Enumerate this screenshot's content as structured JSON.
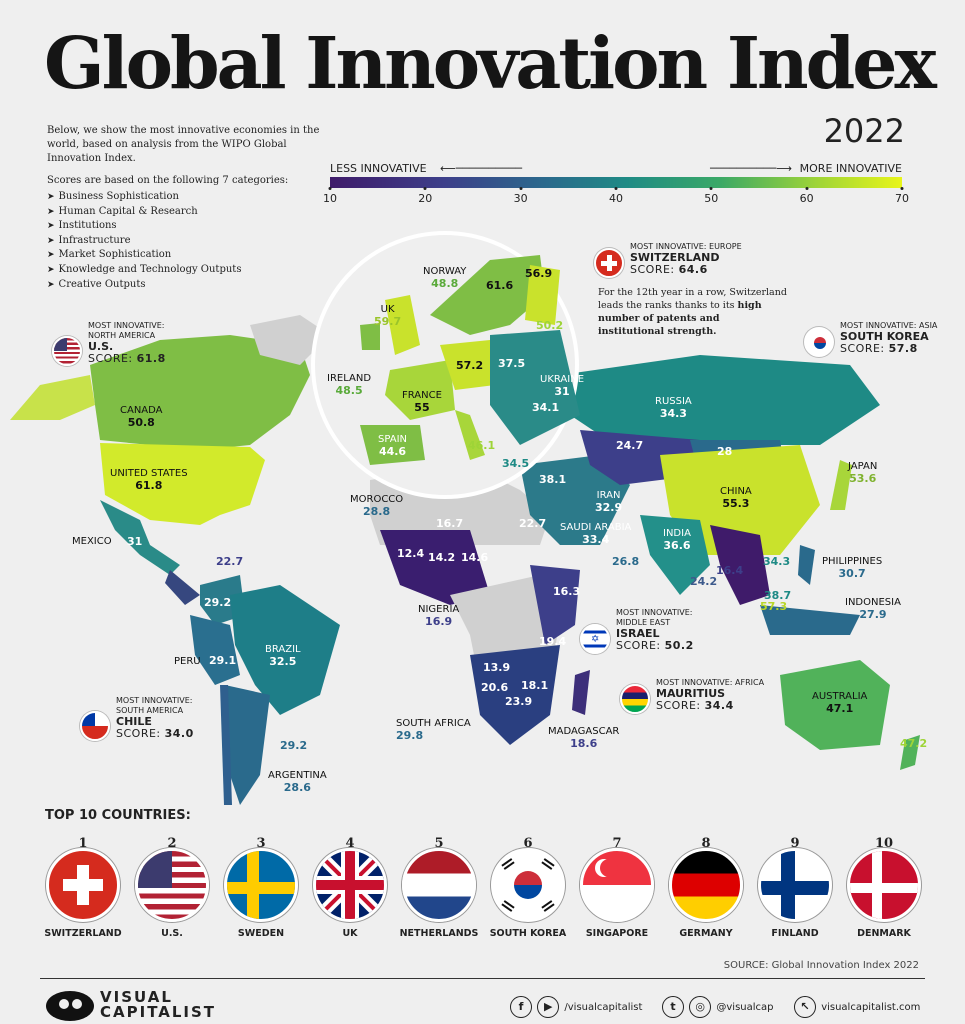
{
  "header": {
    "title": "Global Innovation Index",
    "year": "2022"
  },
  "intro": {
    "text": "Below, we show the most innovative economies in the world, based on analysis from the WIPO Global Innovation Index.",
    "categories_intro": "Scores are based on the following 7 categories:",
    "categories": [
      "Business Sophistication",
      "Human Capital & Research",
      "Institutions",
      "Infrastructure",
      "Market Sophistication",
      "Knowledge and Technology Outputs",
      "Creative Outputs"
    ]
  },
  "legend": {
    "left_label": "LESS INNOVATIVE",
    "right_label": "MORE INNOVATIVE",
    "ticks": [
      "10",
      "20",
      "30",
      "40",
      "50",
      "60",
      "70"
    ],
    "range": [
      10,
      70
    ],
    "colors": [
      "#3f1b6a",
      "#3d3f8a",
      "#2a6a8c",
      "#1f8b85",
      "#3aa867",
      "#9ed437",
      "#e8f51a"
    ]
  },
  "regions": [
    {
      "name": "CANADA",
      "score": "50.8"
    },
    {
      "name": "UNITED STATES",
      "score": "61.8"
    },
    {
      "name": "MEXICO",
      "score": "31"
    },
    {
      "name": "",
      "score": "22.7"
    },
    {
      "name": "",
      "score": "29.2"
    },
    {
      "name": "BRAZIL",
      "score": "32.5"
    },
    {
      "name": "PERU",
      "score": "29.1"
    },
    {
      "name": "",
      "score": "29.2"
    },
    {
      "name": "ARGENTINA",
      "score": "28.6"
    },
    {
      "name": "NORWAY",
      "score": "48.8"
    },
    {
      "name": "UK",
      "score": "59.7"
    },
    {
      "name": "IRELAND",
      "score": "48.5"
    },
    {
      "name": "FRANCE",
      "score": "55"
    },
    {
      "name": "SPAIN",
      "score": "44.6"
    },
    {
      "name": "",
      "score": "61.6"
    },
    {
      "name": "",
      "score": "56.9"
    },
    {
      "name": "",
      "score": "50.2"
    },
    {
      "name": "",
      "score": "57.2"
    },
    {
      "name": "",
      "score": "37.5"
    },
    {
      "name": "UKRAINE",
      "score": "31"
    },
    {
      "name": "",
      "score": "34.1"
    },
    {
      "name": "",
      "score": "46.1"
    },
    {
      "name": "",
      "score": "34.5"
    },
    {
      "name": "RUSSIA",
      "score": "34.3"
    },
    {
      "name": "",
      "score": "24.7"
    },
    {
      "name": "",
      "score": "28"
    },
    {
      "name": "CHINA",
      "score": "55.3"
    },
    {
      "name": "JAPAN",
      "score": "53.6"
    },
    {
      "name": "",
      "score": "38.1"
    },
    {
      "name": "IRAN",
      "score": "32.9"
    },
    {
      "name": "SAUDI ARABIA",
      "score": "33.4"
    },
    {
      "name": "",
      "score": "26.8"
    },
    {
      "name": "INDIA",
      "score": "36.6"
    },
    {
      "name": "",
      "score": "24.2"
    },
    {
      "name": "",
      "score": "16.4"
    },
    {
      "name": "",
      "score": "34.3"
    },
    {
      "name": "PHILIPPINES",
      "score": "30.7"
    },
    {
      "name": "",
      "score": "38.7"
    },
    {
      "name": "",
      "score": "57.3"
    },
    {
      "name": "INDONESIA",
      "score": "27.9"
    },
    {
      "name": "AUSTRALIA",
      "score": "47.1"
    },
    {
      "name": "",
      "score": "47.2"
    },
    {
      "name": "MOROCCO",
      "score": "28.8"
    },
    {
      "name": "",
      "score": "16.7"
    },
    {
      "name": "",
      "score": "22.7"
    },
    {
      "name": "",
      "score": "12.4"
    },
    {
      "name": "",
      "score": "14.2"
    },
    {
      "name": "",
      "score": "14.6"
    },
    {
      "name": "NIGERIA",
      "score": "16.9"
    },
    {
      "name": "",
      "score": "16.3"
    },
    {
      "name": "",
      "score": "19.4"
    },
    {
      "name": "",
      "score": "13.9"
    },
    {
      "name": "",
      "score": "20.6"
    },
    {
      "name": "",
      "score": "18.1"
    },
    {
      "name": "",
      "score": "23.9"
    },
    {
      "name": "SOUTH AFRICA",
      "score": "29.8"
    },
    {
      "name": "MADAGASCAR",
      "score": "18.6"
    }
  ],
  "callouts": {
    "europe": {
      "kicker": "MOST INNOVATIVE: EUROPE",
      "country": "SWITZERLAND",
      "score_label": "SCORE:",
      "score": "64.6"
    },
    "swiss_note": {
      "pre": "For the 12th year in a row, Switzerland leads the ranks thanks to its ",
      "bold": "high number of patents and institutional strength.",
      "post": ""
    },
    "north_america": {
      "kicker1": "MOST INNOVATIVE:",
      "kicker2": "NORTH AMERICA",
      "country": "U.S.",
      "score_label": "SCORE:",
      "score": "61.8"
    },
    "asia": {
      "kicker": "MOST INNOVATIVE: ASIA",
      "country": "SOUTH KOREA",
      "score_label": "SCORE:",
      "score": "57.8"
    },
    "middle_east": {
      "kicker1": "MOST INNOVATIVE:",
      "kicker2": "MIDDLE EAST",
      "country": "ISRAEL",
      "score_label": "SCORE:",
      "score": "50.2"
    },
    "africa": {
      "kicker": "MOST INNOVATIVE: AFRICA",
      "country": "MAURITIUS",
      "score_label": "SCORE:",
      "score": "34.4"
    },
    "south_america": {
      "kicker1": "MOST INNOVATIVE:",
      "kicker2": "SOUTH AMERICA",
      "country": "CHILE",
      "score_label": "SCORE:",
      "score": "34.0"
    }
  },
  "top10": {
    "title": "TOP 10 COUNTRIES:",
    "items": [
      {
        "rank": "1",
        "name": "SWITZERLAND"
      },
      {
        "rank": "2",
        "name": "U.S."
      },
      {
        "rank": "3",
        "name": "SWEDEN"
      },
      {
        "rank": "4",
        "name": "UK"
      },
      {
        "rank": "5",
        "name": "NETHERLANDS"
      },
      {
        "rank": "6",
        "name": "SOUTH KOREA"
      },
      {
        "rank": "7",
        "name": "SINGAPORE"
      },
      {
        "rank": "8",
        "name": "GERMANY"
      },
      {
        "rank": "9",
        "name": "FINLAND"
      },
      {
        "rank": "10",
        "name": "DENMARK"
      }
    ]
  },
  "footer": {
    "source": "SOURCE: Global Innovation Index 2022",
    "brand_line1": "VISUAL",
    "brand_line2": "CAPITALIST",
    "social1": "/visualcapitalist",
    "social2": "@visualcap",
    "website": "visualcapitalist.com"
  }
}
